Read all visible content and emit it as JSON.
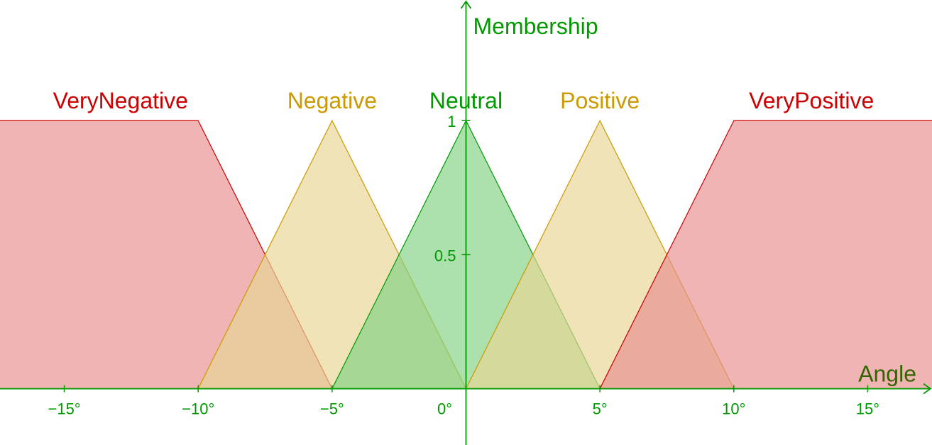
{
  "chart_data": {
    "type": "area",
    "title": "",
    "xlabel": "Angle",
    "ylabel": "Membership",
    "xlim": [
      -17.4,
      17.4
    ],
    "ylim": [
      -0.21,
      1.45
    ],
    "x_ticks": [
      {
        "value": -15,
        "label": "−15°"
      },
      {
        "value": -10,
        "label": "−10°"
      },
      {
        "value": -5,
        "label": "−5°"
      },
      {
        "value": 0,
        "label": "0°"
      },
      {
        "value": 5,
        "label": "5°"
      },
      {
        "value": 10,
        "label": "10°"
      },
      {
        "value": 15,
        "label": "15°"
      }
    ],
    "y_ticks": [
      {
        "value": 0.5,
        "label": "0.5"
      },
      {
        "value": 1,
        "label": "1"
      }
    ],
    "grid": false,
    "colors": {
      "axis": "#009900",
      "xlabel": "#336600",
      "very": "#cc0000",
      "mid": "#cc9900",
      "neutral": "#009900",
      "very_fill": "#e8908f",
      "mid_fill": "#e8d595",
      "neutral_fill": "#85d185"
    },
    "series": [
      {
        "name": "VeryNegative",
        "color_key": "very",
        "points": [
          [
            -17.4,
            1
          ],
          [
            -10,
            1
          ],
          [
            -5,
            0
          ],
          [
            -17.4,
            0
          ]
        ]
      },
      {
        "name": "Negative",
        "color_key": "mid",
        "points": [
          [
            -10,
            0
          ],
          [
            -5,
            1
          ],
          [
            0,
            0
          ]
        ]
      },
      {
        "name": "Neutral",
        "color_key": "neutral",
        "points": [
          [
            -5,
            0
          ],
          [
            0,
            1
          ],
          [
            5,
            0
          ]
        ]
      },
      {
        "name": "Positive",
        "color_key": "mid",
        "points": [
          [
            0,
            0
          ],
          [
            5,
            1
          ],
          [
            10,
            0
          ]
        ]
      },
      {
        "name": "VeryPositive",
        "color_key": "very",
        "points": [
          [
            5,
            0
          ],
          [
            10,
            1
          ],
          [
            17.4,
            1
          ],
          [
            17.4,
            0
          ]
        ]
      }
    ]
  }
}
